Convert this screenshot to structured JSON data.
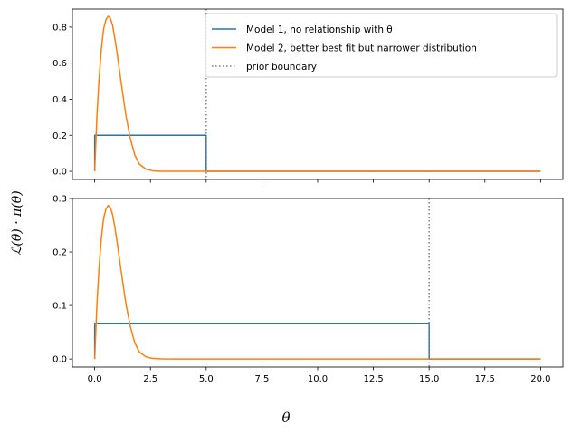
{
  "chart_data": {
    "type": "line",
    "xlabel": "θ",
    "ylabel": "ℒ(θ) · π(θ)",
    "xlim": [
      -1,
      21
    ],
    "xticks": [
      "0.0",
      "2.5",
      "5.0",
      "7.5",
      "10.0",
      "12.5",
      "15.0",
      "17.5",
      "20.0"
    ],
    "xtick_values": [
      0,
      2.5,
      5,
      7.5,
      10,
      12.5,
      15,
      17.5,
      20
    ],
    "colors": {
      "model1": "#1f77b4",
      "model2": "#ff7f0e",
      "boundary": "#808080"
    },
    "legend": {
      "placement": "upper right of top panel",
      "entries": [
        {
          "label": "Model 1, no relationship with θ",
          "color": "#1f77b4",
          "style": "solid"
        },
        {
          "label": "Model 2, better best fit but narrower distribution",
          "color": "#ff7f0e",
          "style": "solid"
        },
        {
          "label": "prior boundary",
          "color": "#808080",
          "style": "dotted"
        }
      ]
    },
    "panels": [
      {
        "ylim": [
          -0.045,
          0.9
        ],
        "yticks": [
          "0.0",
          "0.2",
          "0.4",
          "0.6",
          "0.8"
        ],
        "ytick_values": [
          0,
          0.2,
          0.4,
          0.6,
          0.8
        ],
        "prior_boundary": 5,
        "series": [
          {
            "name": "Model 1, no relationship with θ",
            "x": [
              0,
              0,
              5,
              5,
              20
            ],
            "y": [
              0,
              0.2,
              0.2,
              0,
              0
            ]
          },
          {
            "name": "Model 2, better best fit but narrower distribution",
            "x": [
              0,
              0.1,
              0.2,
              0.3,
              0.4,
              0.5,
              0.6,
              0.7,
              0.8,
              0.9,
              1.0,
              1.2,
              1.4,
              1.6,
              1.8,
              2.0,
              2.3,
              2.6,
              3.0,
              3.5,
              20
            ],
            "y": [
              0,
              0.31,
              0.52,
              0.68,
              0.79,
              0.84,
              0.86,
              0.85,
              0.81,
              0.74,
              0.66,
              0.48,
              0.31,
              0.18,
              0.09,
              0.04,
              0.012,
              0.003,
              0.0005,
              0,
              0
            ]
          }
        ]
      },
      {
        "ylim": [
          -0.015,
          0.3
        ],
        "yticks": [
          "0.0",
          "0.1",
          "0.2",
          "0.3"
        ],
        "ytick_values": [
          0,
          0.1,
          0.2,
          0.3
        ],
        "prior_boundary": 15,
        "series": [
          {
            "name": "Model 1, no relationship with θ",
            "x": [
              0,
              0,
              15,
              15,
              20
            ],
            "y": [
              0,
              0.0667,
              0.0667,
              0,
              0
            ]
          },
          {
            "name": "Model 2, better best fit but narrower distribution",
            "x": [
              0,
              0.1,
              0.2,
              0.3,
              0.4,
              0.5,
              0.6,
              0.7,
              0.8,
              0.9,
              1.0,
              1.2,
              1.4,
              1.6,
              1.8,
              2.0,
              2.3,
              2.6,
              3.0,
              3.5,
              20
            ],
            "y": [
              0,
              0.103,
              0.173,
              0.227,
              0.263,
              0.28,
              0.287,
              0.283,
              0.27,
              0.247,
              0.22,
              0.16,
              0.103,
              0.06,
              0.03,
              0.013,
              0.004,
              0.001,
              0.0002,
              0,
              0
            ]
          }
        ]
      }
    ]
  }
}
